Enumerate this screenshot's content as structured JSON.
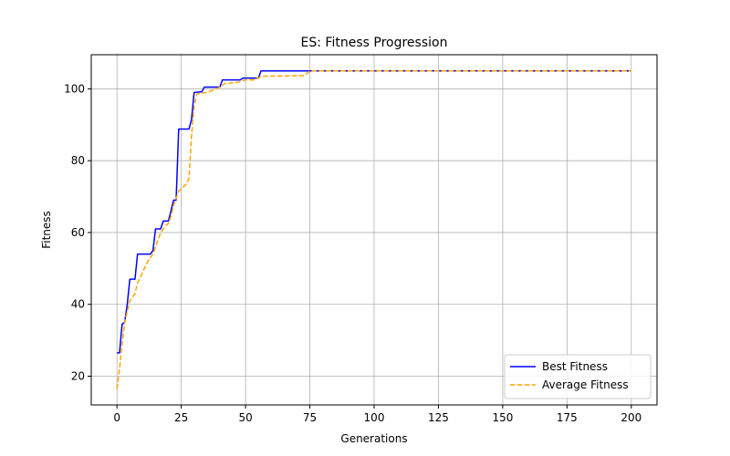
{
  "chart_data": {
    "type": "line",
    "title": "ES: Fitness Progression",
    "xlabel": "Generations",
    "ylabel": "Fitness",
    "xlim": [
      -10,
      210
    ],
    "ylim": [
      12,
      109.5
    ],
    "xticks": [
      0,
      25,
      50,
      75,
      100,
      125,
      150,
      175,
      200
    ],
    "yticks": [
      20,
      40,
      60,
      80,
      100
    ],
    "grid": true,
    "legend_position": "lower-right",
    "series": [
      {
        "name": "Best Fitness",
        "color": "#0000ff",
        "style": "solid",
        "points": [
          [
            0,
            26.5
          ],
          [
            1,
            26.5
          ],
          [
            2,
            34.5
          ],
          [
            3,
            35
          ],
          [
            4,
            40
          ],
          [
            5,
            47
          ],
          [
            7,
            47
          ],
          [
            8,
            54
          ],
          [
            13,
            54
          ],
          [
            14,
            55
          ],
          [
            15,
            61
          ],
          [
            17,
            61
          ],
          [
            18,
            63.2
          ],
          [
            20,
            63.2
          ],
          [
            21,
            66
          ],
          [
            22,
            69
          ],
          [
            23,
            69
          ],
          [
            24,
            88.8
          ],
          [
            28,
            88.8
          ],
          [
            29,
            91.5
          ],
          [
            30,
            99
          ],
          [
            33,
            99.2
          ],
          [
            34,
            100.5
          ],
          [
            40,
            100.5
          ],
          [
            41,
            102.5
          ],
          [
            48,
            102.5
          ],
          [
            49,
            103
          ],
          [
            55,
            103
          ],
          [
            56,
            105
          ],
          [
            200,
            105
          ]
        ]
      },
      {
        "name": "Average Fitness",
        "color": "#ffa500",
        "style": "dashed",
        "points": [
          [
            0,
            16.5
          ],
          [
            1,
            22
          ],
          [
            2,
            29
          ],
          [
            3,
            35
          ],
          [
            4,
            38
          ],
          [
            5,
            41
          ],
          [
            7,
            43
          ],
          [
            8,
            46
          ],
          [
            10,
            49
          ],
          [
            12,
            52
          ],
          [
            14,
            54
          ],
          [
            15,
            56
          ],
          [
            17,
            60
          ],
          [
            19,
            62
          ],
          [
            20,
            62.5
          ],
          [
            21,
            64.5
          ],
          [
            22,
            67.5
          ],
          [
            23,
            69.5
          ],
          [
            24,
            71.5
          ],
          [
            27,
            73.5
          ],
          [
            28,
            75
          ],
          [
            29,
            87
          ],
          [
            30,
            95
          ],
          [
            31,
            98.5
          ],
          [
            33,
            98.8
          ],
          [
            35,
            99
          ],
          [
            38,
            99.8
          ],
          [
            40,
            100.5
          ],
          [
            42,
            101.5
          ],
          [
            47,
            101.8
          ],
          [
            50,
            102.5
          ],
          [
            53,
            102.5
          ],
          [
            55,
            103
          ],
          [
            56,
            103.5
          ],
          [
            73,
            103.7
          ],
          [
            75,
            105
          ],
          [
            200,
            105
          ]
        ]
      }
    ]
  }
}
